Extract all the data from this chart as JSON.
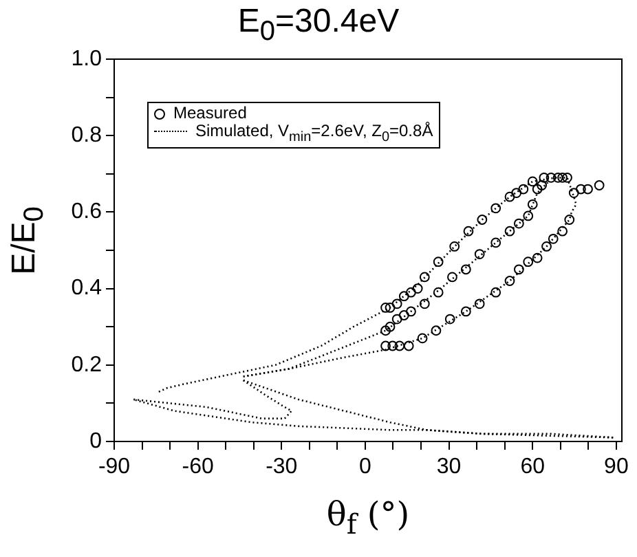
{
  "chart_data": {
    "type": "scatter",
    "title": "E$_{0}$=30.4eV",
    "xlabel": "θ$_{f}$ (°)",
    "ylabel": "E/E$_{0}$",
    "xlim": [
      -90,
      92
    ],
    "ylim": [
      0,
      1
    ],
    "xticks": [
      -90,
      {
        "value": -80,
        "label": null
      },
      {
        "value": -70,
        "label": null
      },
      -60,
      {
        "value": -50,
        "label": null
      },
      {
        "value": -40,
        "label": null
      },
      -30,
      {
        "value": -20,
        "label": null
      },
      {
        "value": -10,
        "label": null
      },
      0,
      {
        "value": 10,
        "label": null
      },
      {
        "value": 20,
        "label": null
      },
      30,
      {
        "value": 40,
        "label": null
      },
      {
        "value": 50,
        "label": null
      },
      60,
      {
        "value": 70,
        "label": null
      },
      {
        "value": 80,
        "label": null
      },
      90
    ],
    "yticks": [
      0.0,
      {
        "value": 0.1,
        "label": null
      },
      {
        "value": 0.2,
        "label": "0.2"
      },
      {
        "value": 0.3,
        "label": null
      },
      {
        "value": 0.4,
        "label": "0.4"
      },
      {
        "value": 0.5,
        "label": null
      },
      {
        "value": 0.6,
        "label": "0.6"
      },
      {
        "value": 0.7,
        "label": null
      },
      {
        "value": 0.8,
        "label": "0.8"
      },
      {
        "value": 0.9,
        "label": null
      },
      {
        "value": 1.0,
        "label": "1.0"
      }
    ],
    "grid": false,
    "legend": "top left",
    "series": [
      {
        "name": "Measured",
        "type": "scatter",
        "marker": "circle",
        "color": "#000000",
        "x": [
          7.3,
          8.9,
          11.4,
          13.9,
          16.4,
          18.8,
          21.3,
          26.2,
          32.0,
          37.0,
          41.9,
          46.8,
          51.8,
          54.2,
          56.7,
          60.0,
          64.1,
          66.6,
          69.1,
          70.7,
          72.4,
          7.3,
          8.9,
          11.4,
          13.9,
          16.4,
          21.3,
          26.2,
          31.2,
          36.1,
          41.0,
          46.8,
          51.8,
          55.1,
          58.4,
          60.0,
          61.7,
          63.3,
          7.3,
          9.8,
          12.3,
          15.6,
          20.5,
          25.4,
          30.4,
          36.1,
          41.0,
          46.8,
          51.8,
          55.1,
          58.4,
          61.7,
          65.0,
          67.4,
          70.7,
          73.2,
          74.8,
          77.3,
          79.8,
          83.9
        ],
        "values": [
          0.35,
          0.35,
          0.36,
          0.38,
          0.39,
          0.4,
          0.43,
          0.47,
          0.51,
          0.55,
          0.58,
          0.61,
          0.64,
          0.65,
          0.66,
          0.68,
          0.69,
          0.69,
          0.69,
          0.69,
          0.69,
          0.29,
          0.3,
          0.32,
          0.33,
          0.34,
          0.36,
          0.39,
          0.43,
          0.45,
          0.49,
          0.52,
          0.55,
          0.57,
          0.59,
          0.62,
          0.66,
          0.67,
          0.25,
          0.25,
          0.25,
          0.25,
          0.27,
          0.29,
          0.32,
          0.34,
          0.36,
          0.39,
          0.42,
          0.45,
          0.47,
          0.48,
          0.51,
          0.53,
          0.55,
          0.58,
          0.65,
          0.66,
          0.66,
          0.67
        ]
      },
      {
        "name": "Simulated, V$_{min}$=2.6eV, Z$_{0}$=0.8Å",
        "type": "line",
        "line_style": "dotted",
        "marker": "none",
        "color": "#000000",
        "x": [
          -74.0,
          -71.0,
          -65.1,
          -52.0,
          -32.2,
          -15.8,
          -4.2,
          8.9,
          18.8,
          32.0,
          41.9,
          51.8,
          60.0,
          68.2,
          72.4,
          74.8,
          75.6,
          74.0,
          73.2,
          65.0,
          51.8,
          36.1,
          20.5,
          7.3,
          -7.5,
          -27.3,
          -43.7
        ],
        "values": [
          0.13,
          0.14,
          0.15,
          0.17,
          0.2,
          0.25,
          0.3,
          0.35,
          0.41,
          0.51,
          0.58,
          0.64,
          0.68,
          0.69,
          0.69,
          0.64,
          0.62,
          0.6,
          0.58,
          0.51,
          0.42,
          0.34,
          0.27,
          0.24,
          0.22,
          0.19,
          0.17
        ]
      },
      {
        "type": "line",
        "line_style": "dotted",
        "marker": "none",
        "color": "#000000",
        "x": [
          -43.7,
          -27.3,
          7.3,
          25.4,
          46.8,
          58.4,
          61.7,
          65.8
        ],
        "values": [
          0.17,
          0.19,
          0.29,
          0.39,
          0.52,
          0.59,
          0.65,
          0.68
        ]
      },
      {
        "type": "line",
        "line_style": "dotted",
        "marker": "none",
        "color": "#000000",
        "x": [
          -43.7,
          -35.5,
          -28.9,
          -26.4,
          -28.9,
          -37.1,
          -56.9,
          -83.2,
          -68.4,
          -40.5,
          -24.0,
          8.9,
          22.1,
          41.9,
          89.7
        ],
        "values": [
          0.16,
          0.12,
          0.09,
          0.08,
          0.06,
          0.06,
          0.09,
          0.11,
          0.08,
          0.05,
          0.04,
          0.03,
          0.03,
          0.02,
          0.01
        ]
      },
      {
        "type": "line",
        "line_style": "dotted",
        "marker": "none",
        "color": "#000000",
        "x": [
          -43.7,
          -24.0,
          -7.5,
          8.9,
          22.1,
          41.9,
          66.6,
          89.7
        ],
        "values": [
          0.16,
          0.11,
          0.08,
          0.05,
          0.03,
          0.02,
          0.02,
          0.01
        ]
      }
    ]
  }
}
